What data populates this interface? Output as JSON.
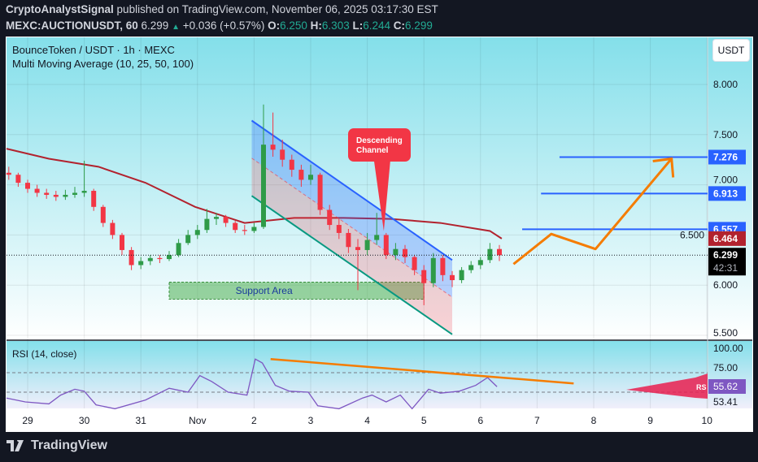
{
  "header": {
    "author": "CryptoAnalystSignal",
    "published": "published on TradingView.com, November 06, 2025 03:17:30 EST",
    "symbol": "MEXC:AUCTIONUSDT, 60",
    "last": "6.299",
    "change": "+0.036 (+0.57%)",
    "o_label": "O:",
    "o": "6.250",
    "h_label": "H:",
    "h": "6.303",
    "l_label": "L:",
    "l": "6.244",
    "c_label": "C:",
    "c": "6.299"
  },
  "legend": {
    "title": "BounceToken / USDT · 1h · MEXC",
    "indicator": "Multi Moving Average (10, 25, 50, 100)",
    "rsi": "RSI (14, close)"
  },
  "currency_button": "USDT",
  "footer": {
    "brand": "TradingView"
  },
  "colors": {
    "up": "#2e9b48",
    "down": "#f23645",
    "ma": "#b2222e",
    "channel_upper": "#2962ff",
    "channel_lower": "#089981",
    "levels": "#2962ff",
    "projection": "#f57c00",
    "support": "#4caf50",
    "callout": "#f23645",
    "rsi": "#7e57c2",
    "background": "#131722"
  },
  "chart_data": {
    "type": "candlestick",
    "interval_shown": "1h",
    "ylim": [
      5.5,
      8.1
    ],
    "price_ticks": [
      "8.000",
      "7.500",
      "7.000",
      "6.500",
      "6.000",
      "5.500"
    ],
    "x_ticks": [
      {
        "label": "29",
        "t": "2025-10-29T00:00Z"
      },
      {
        "label": "30",
        "t": "2025-10-30T00:00Z"
      },
      {
        "label": "31",
        "t": "2025-10-31T00:00Z"
      },
      {
        "label": "Nov",
        "t": "2025-11-01T00:00Z"
      },
      {
        "label": "2",
        "t": "2025-11-02T00:00Z"
      },
      {
        "label": "3",
        "t": "2025-11-03T00:00Z"
      },
      {
        "label": "4",
        "t": "2025-11-04T00:00Z"
      },
      {
        "label": "5",
        "t": "2025-11-05T00:00Z"
      },
      {
        "label": "6",
        "t": "2025-11-06T00:00Z"
      },
      {
        "label": "7",
        "t": "2025-11-07T00:00Z"
      },
      {
        "label": "8",
        "t": "2025-11-08T00:00Z"
      },
      {
        "label": "9",
        "t": "2025-11-09T00:00Z"
      },
      {
        "label": "10",
        "t": "2025-11-10T00:00Z"
      }
    ],
    "candles_start": "2025-10-28T16:00Z",
    "candles": [
      [
        7.12,
        7.18,
        7.05,
        7.1
      ],
      [
        7.1,
        7.12,
        6.98,
        7.02
      ],
      [
        7.02,
        7.05,
        6.92,
        6.96
      ],
      [
        6.96,
        7.0,
        6.88,
        6.92
      ],
      [
        6.92,
        6.96,
        6.86,
        6.9
      ],
      [
        6.9,
        6.94,
        6.84,
        6.88
      ],
      [
        6.88,
        6.95,
        6.85,
        6.9
      ],
      [
        6.9,
        6.98,
        6.87,
        6.92
      ],
      [
        6.92,
        7.24,
        6.88,
        6.94
      ],
      [
        6.94,
        6.96,
        6.74,
        6.78
      ],
      [
        6.78,
        6.8,
        6.58,
        6.62
      ],
      [
        6.62,
        6.65,
        6.46,
        6.5
      ],
      [
        6.5,
        6.52,
        6.3,
        6.35
      ],
      [
        6.35,
        6.38,
        6.15,
        6.2
      ],
      [
        6.2,
        6.28,
        6.16,
        6.24
      ],
      [
        6.24,
        6.3,
        6.2,
        6.27
      ],
      [
        6.27,
        6.3,
        6.22,
        6.26
      ],
      [
        6.26,
        6.34,
        6.24,
        6.3
      ],
      [
        6.3,
        6.46,
        6.28,
        6.42
      ],
      [
        6.42,
        6.55,
        6.4,
        6.5
      ],
      [
        6.5,
        6.6,
        6.46,
        6.55
      ],
      [
        6.55,
        6.76,
        6.52,
        6.66
      ],
      [
        6.66,
        6.72,
        6.6,
        6.68
      ],
      [
        6.68,
        6.7,
        6.58,
        6.62
      ],
      [
        6.62,
        6.64,
        6.52,
        6.55
      ],
      [
        6.55,
        6.6,
        6.5,
        6.54
      ],
      [
        6.54,
        6.62,
        6.52,
        6.58
      ],
      [
        6.58,
        7.8,
        6.56,
        7.4
      ],
      [
        7.4,
        7.72,
        7.28,
        7.35
      ],
      [
        7.35,
        7.45,
        7.18,
        7.25
      ],
      [
        7.25,
        7.3,
        7.08,
        7.15
      ],
      [
        7.15,
        7.2,
        6.98,
        7.05
      ],
      [
        7.05,
        7.2,
        7.0,
        7.1
      ],
      [
        7.1,
        7.12,
        6.7,
        6.75
      ],
      [
        6.75,
        6.8,
        6.55,
        6.6
      ],
      [
        6.6,
        6.66,
        6.46,
        6.52
      ],
      [
        6.52,
        6.56,
        6.32,
        6.38
      ],
      [
        6.38,
        6.46,
        5.95,
        6.35
      ],
      [
        6.35,
        6.52,
        6.3,
        6.45
      ],
      [
        6.45,
        6.72,
        6.4,
        6.5
      ],
      [
        6.5,
        6.52,
        6.26,
        6.3
      ],
      [
        6.3,
        6.42,
        6.25,
        6.36
      ],
      [
        6.36,
        6.4,
        6.22,
        6.28
      ],
      [
        6.28,
        6.3,
        6.1,
        6.15
      ],
      [
        6.15,
        6.2,
        5.8,
        6.02
      ],
      [
        6.02,
        6.32,
        5.98,
        6.27
      ],
      [
        6.27,
        6.3,
        6.04,
        6.1
      ],
      [
        6.1,
        6.14,
        5.98,
        6.05
      ],
      [
        6.05,
        6.18,
        6.02,
        6.15
      ],
      [
        6.15,
        6.24,
        6.12,
        6.2
      ],
      [
        6.2,
        6.28,
        6.16,
        6.25
      ],
      [
        6.25,
        6.42,
        6.22,
        6.36
      ],
      [
        6.36,
        6.4,
        6.24,
        6.299
      ]
    ],
    "candle_step_hours": 4,
    "moving_average": [
      {
        "t": "2025-10-28T15:00Z",
        "v": 7.36
      },
      {
        "t": "2025-10-29T09:00Z",
        "v": 7.26
      },
      {
        "t": "2025-10-30T06:00Z",
        "v": 7.18
      },
      {
        "t": "2025-10-31T02:00Z",
        "v": 7.02
      },
      {
        "t": "2025-10-31T23:00Z",
        "v": 6.78
      },
      {
        "t": "2025-11-01T20:00Z",
        "v": 6.62
      },
      {
        "t": "2025-11-02T17:00Z",
        "v": 6.67
      },
      {
        "t": "2025-11-03T14:00Z",
        "v": 6.67
      },
      {
        "t": "2025-11-04T10:00Z",
        "v": 6.66
      },
      {
        "t": "2025-11-05T07:00Z",
        "v": 6.62
      },
      {
        "t": "2025-11-06T04:00Z",
        "v": 6.54
      },
      {
        "t": "2025-11-06T09:00Z",
        "v": 6.464
      }
    ],
    "price_labels": [
      {
        "value": "7.276",
        "color": "#2962ff"
      },
      {
        "value": "6.913",
        "color": "#2962ff"
      },
      {
        "value": "6.557",
        "color": "#2962ff"
      },
      {
        "value": "6.464",
        "color": "#b2222e"
      },
      {
        "value": "6.299",
        "color": "#000000",
        "countdown": "42:31"
      }
    ],
    "drawings": {
      "channel": {
        "upper": [
          {
            "t": "2025-11-01T23:00Z",
            "v": 7.64
          },
          {
            "t": "2025-11-05T12:00Z",
            "v": 6.25
          }
        ],
        "lower": [
          {
            "t": "2025-11-01T23:00Z",
            "v": 6.89
          },
          {
            "t": "2025-11-05T12:00Z",
            "v": 5.51
          }
        ]
      },
      "levels": [
        {
          "v": 7.276,
          "from": "2025-11-07T09:30Z"
        },
        {
          "v": 6.913,
          "from": "2025-11-07T01:40Z"
        },
        {
          "v": 6.557,
          "from": "2025-11-06T17:40Z"
        }
      ],
      "projection": [
        {
          "t": "2025-11-06T14:00Z",
          "v": 6.21
        },
        {
          "t": "2025-11-07T06:00Z",
          "v": 6.51
        },
        {
          "t": "2025-11-08T00:45Z",
          "v": 6.36
        },
        {
          "t": "2025-11-09T09:00Z",
          "v": 7.26
        }
      ],
      "support": {
        "from": "2025-10-31T12:00Z",
        "to": "2025-11-05T00:00Z",
        "top": 6.03,
        "bottom": 5.86,
        "label": "Support Area"
      },
      "callout": {
        "text_line1": "Descending",
        "text_line2": "Channel",
        "tip_t": "2025-11-04T07:00Z",
        "tip_v": 6.54
      }
    },
    "rsi": {
      "ticks": [
        "100.00",
        "75.00"
      ],
      "current": "55.62",
      "other_label": "53.41",
      "bands": [
        70,
        50
      ],
      "flag_label": "RS",
      "values": [
        {
          "t": "2025-10-28T15:00Z",
          "v": 44
        },
        {
          "t": "2025-10-28T23:00Z",
          "v": 40
        },
        {
          "t": "2025-10-29T09:00Z",
          "v": 38
        },
        {
          "t": "2025-10-29T14:00Z",
          "v": 47
        },
        {
          "t": "2025-10-29T20:00Z",
          "v": 53
        },
        {
          "t": "2025-10-30T00:00Z",
          "v": 51
        },
        {
          "t": "2025-10-30T05:00Z",
          "v": 37
        },
        {
          "t": "2025-10-30T13:00Z",
          "v": 33
        },
        {
          "t": "2025-10-31T02:00Z",
          "v": 42
        },
        {
          "t": "2025-10-31T12:00Z",
          "v": 54
        },
        {
          "t": "2025-10-31T20:00Z",
          "v": 50
        },
        {
          "t": "2025-11-01T01:00Z",
          "v": 67
        },
        {
          "t": "2025-11-01T06:00Z",
          "v": 61
        },
        {
          "t": "2025-11-01T13:00Z",
          "v": 50
        },
        {
          "t": "2025-11-01T21:00Z",
          "v": 47
        },
        {
          "t": "2025-11-02T00:30Z",
          "v": 84
        },
        {
          "t": "2025-11-02T03:30Z",
          "v": 80
        },
        {
          "t": "2025-11-02T09:00Z",
          "v": 57
        },
        {
          "t": "2025-11-02T15:00Z",
          "v": 51
        },
        {
          "t": "2025-11-02T23:00Z",
          "v": 50
        },
        {
          "t": "2025-11-03T03:00Z",
          "v": 36
        },
        {
          "t": "2025-11-03T12:00Z",
          "v": 33
        },
        {
          "t": "2025-11-03T22:00Z",
          "v": 44
        },
        {
          "t": "2025-11-04T02:00Z",
          "v": 47
        },
        {
          "t": "2025-11-04T08:00Z",
          "v": 40
        },
        {
          "t": "2025-11-04T14:00Z",
          "v": 47
        },
        {
          "t": "2025-11-04T19:00Z",
          "v": 33
        },
        {
          "t": "2025-11-05T02:00Z",
          "v": 53
        },
        {
          "t": "2025-11-05T07:00Z",
          "v": 49
        },
        {
          "t": "2025-11-05T15:00Z",
          "v": 51
        },
        {
          "t": "2025-11-05T22:00Z",
          "v": 57
        },
        {
          "t": "2025-11-06T03:00Z",
          "v": 65
        },
        {
          "t": "2025-11-06T07:00Z",
          "v": 55.62
        }
      ],
      "trendline": [
        {
          "t": "2025-11-02T07:00Z",
          "v": 84
        },
        {
          "t": "2025-11-07T15:30Z",
          "v": 59
        }
      ]
    }
  }
}
